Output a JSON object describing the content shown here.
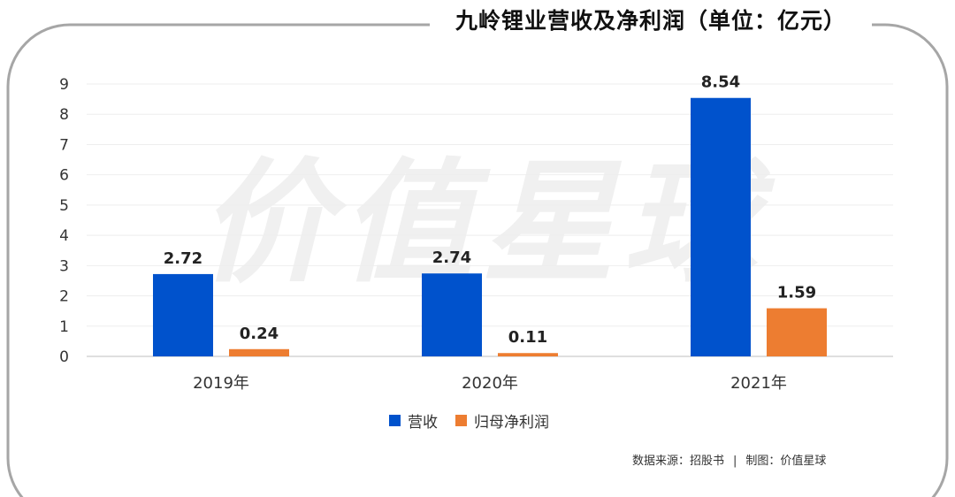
{
  "title": "九岭锂业营收及净利润（单位：亿元）",
  "watermark": "价值星球",
  "chart_data": {
    "type": "bar",
    "title": "九岭锂业营收及净利润（单位：亿元）",
    "categories": [
      "2019年",
      "2020年",
      "2021年"
    ],
    "series": [
      {
        "name": "营收",
        "color": "#0052cc",
        "values": [
          2.72,
          2.74,
          8.54
        ]
      },
      {
        "name": "归母净利润",
        "color": "#ed7d31",
        "values": [
          0.24,
          0.11,
          1.59
        ]
      }
    ],
    "yticks": [
      "0",
      "1",
      "2",
      "3",
      "4",
      "5",
      "6",
      "7",
      "8",
      "9"
    ],
    "ylim": [
      0,
      9
    ],
    "grid": true,
    "legend_position": "bottom"
  },
  "legend": [
    {
      "label": "营收",
      "color": "#0052cc"
    },
    {
      "label": "归母净利润",
      "color": "#ed7d31"
    }
  ],
  "source": {
    "data_source": "数据来源：招股书",
    "separator": "|",
    "maker": "制图：价值星球"
  }
}
